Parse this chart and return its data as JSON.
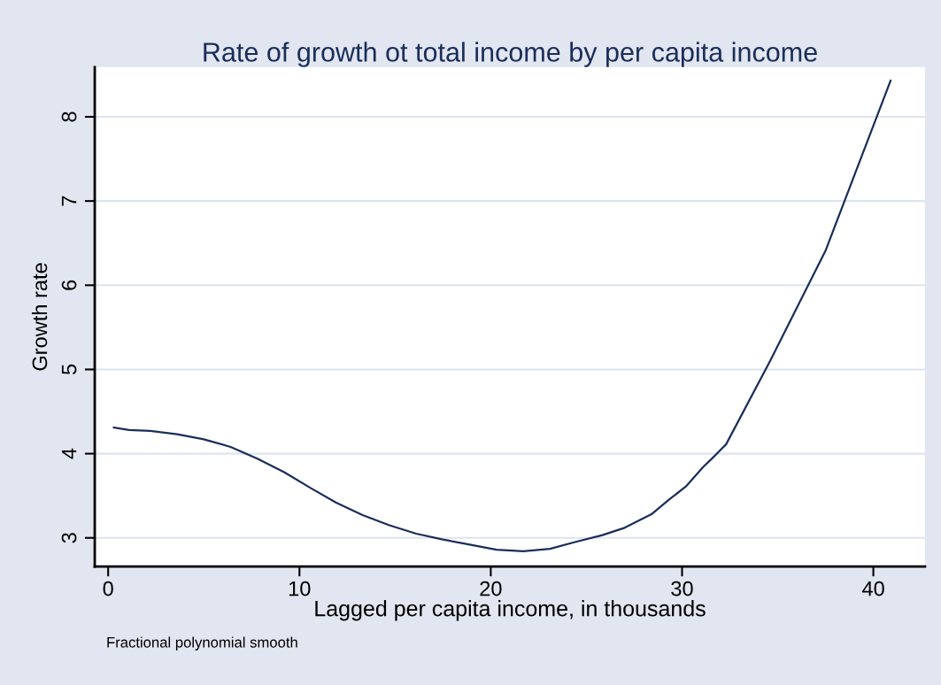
{
  "chart_data": {
    "type": "line",
    "title": "Rate of growth ot total income by per capita income",
    "xlabel": "Lagged per capita income, in thousands",
    "ylabel": "Growth rate",
    "annotations": [
      "Fractional polynomial smooth"
    ],
    "x": [
      0.3,
      1.1,
      2.2,
      3.6,
      5.0,
      6.4,
      7.8,
      9.2,
      10.6,
      11.9,
      13.3,
      14.7,
      16.1,
      17.5,
      18.9,
      20.3,
      21.7,
      23.1,
      24.4,
      25.8,
      27.0,
      28.4,
      29.3,
      30.2,
      31.1,
      31.6,
      32.3,
      34.6,
      37.5,
      40.9
    ],
    "series": [
      {
        "color": "#1a2e5a",
        "values": [
          4.31,
          4.28,
          4.27,
          4.23,
          4.17,
          4.08,
          3.94,
          3.78,
          3.59,
          3.42,
          3.27,
          3.15,
          3.05,
          2.98,
          2.92,
          2.86,
          2.84,
          2.87,
          2.95,
          3.03,
          3.12,
          3.28,
          3.45,
          3.61,
          3.84,
          3.95,
          4.11,
          5.1,
          6.41,
          8.43
        ]
      }
    ],
    "xlim": [
      -0.7,
      42.7
    ],
    "ylim": [
      2.66,
      8.59
    ],
    "xticks": [
      0,
      10,
      20,
      30,
      40
    ],
    "yticks": [
      3,
      4,
      5,
      6,
      7,
      8
    ],
    "grid": "y",
    "legend": false
  }
}
